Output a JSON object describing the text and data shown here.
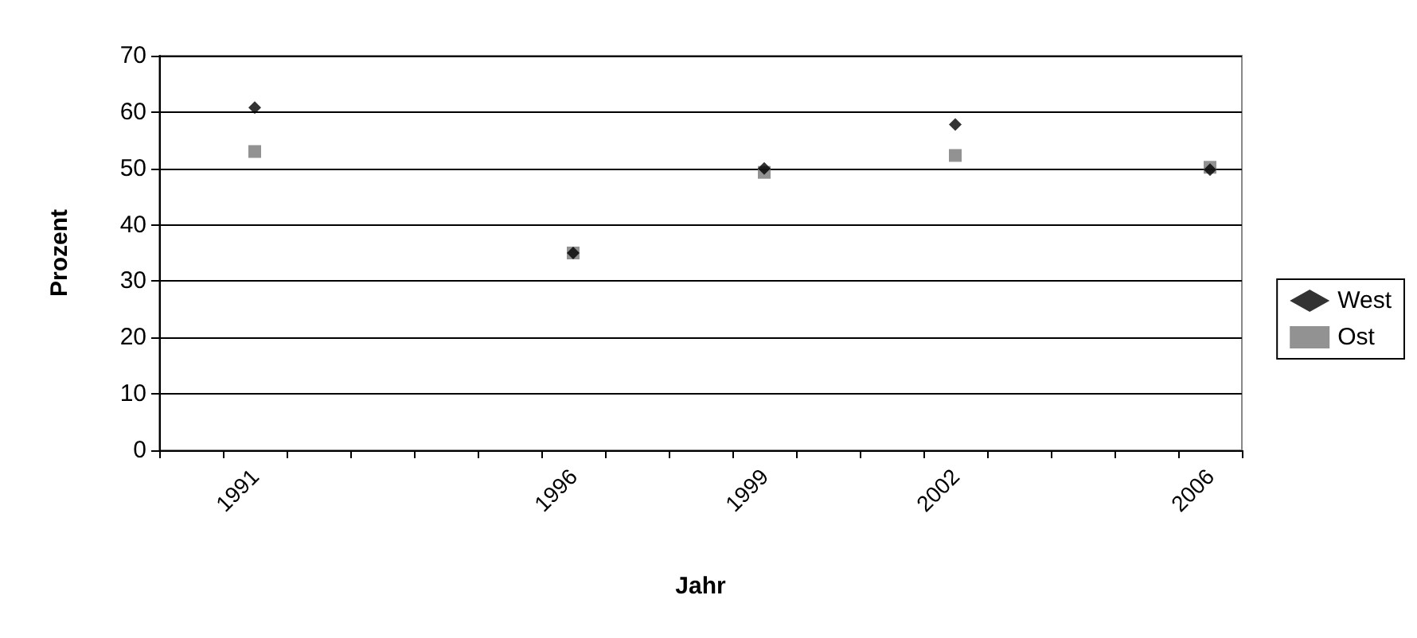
{
  "chart_data": {
    "type": "scatter",
    "xlabel": "Jahr",
    "ylabel": "Prozent",
    "categories": [
      null,
      "1991",
      null,
      null,
      null,
      null,
      "1996",
      null,
      null,
      "1999",
      null,
      null,
      "2002",
      null,
      null,
      null,
      "2006"
    ],
    "series": [
      {
        "name": "West",
        "color": "#000000",
        "marker": "diamond",
        "values": [
          null,
          60.8,
          null,
          null,
          null,
          null,
          35,
          null,
          null,
          50,
          null,
          null,
          57.8,
          null,
          null,
          null,
          49.8
        ]
      },
      {
        "name": "Ost",
        "color": "#777777",
        "marker": "square",
        "values": [
          null,
          53,
          null,
          null,
          null,
          null,
          35,
          null,
          null,
          49.3,
          null,
          null,
          52.3,
          null,
          null,
          null,
          50.2
        ]
      }
    ],
    "ylim": [
      0,
      70
    ],
    "yticks": [
      0,
      10,
      20,
      30,
      40,
      50,
      60,
      70
    ],
    "grid": "y",
    "legend": "right"
  }
}
